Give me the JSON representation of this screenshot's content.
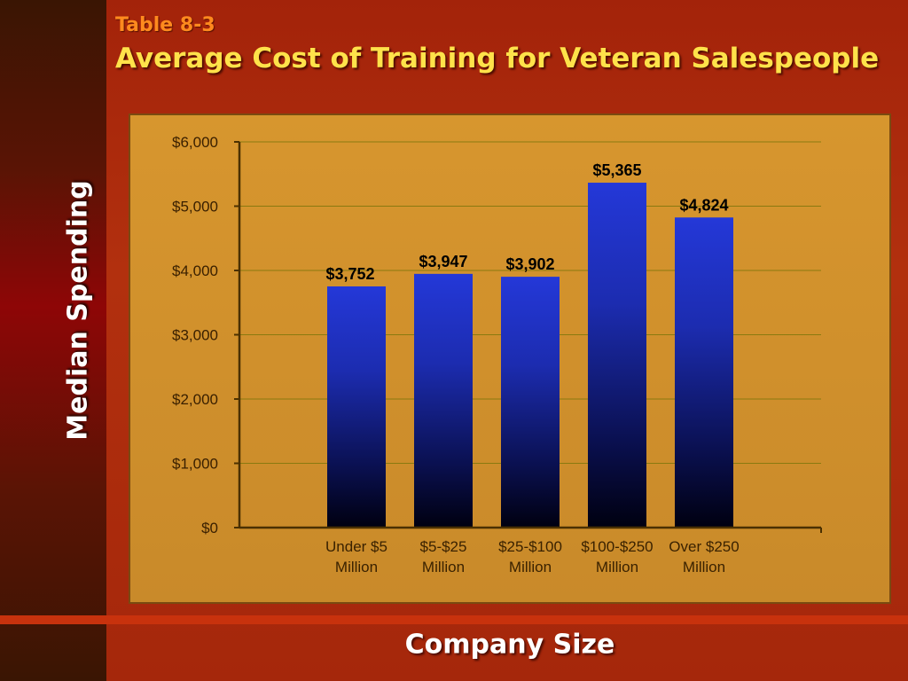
{
  "slide": {
    "subtitle": "Table 8-3",
    "title": "Average Cost of Training for Veteran Salespeople"
  },
  "colors": {
    "background": "#a3230a",
    "left_band": "#5a1405",
    "plot_panel": "#d7962e",
    "bar_top": "#2438d8",
    "bar_bottom": "#000010",
    "title": "#ffe24a",
    "subtitle": "#ff8a1e",
    "gridline": "#8a7a10"
  },
  "chart_data": {
    "type": "bar",
    "title": "Average Cost of Training for Veteran Salespeople",
    "xlabel": "Company Size",
    "ylabel": "Median Spending",
    "categories": [
      [
        "Under $5",
        "Million"
      ],
      [
        "$5-$25",
        "Million"
      ],
      [
        "$25-$100",
        "Million"
      ],
      [
        "$100-$250",
        "Million"
      ],
      [
        "Over $250",
        "Million"
      ]
    ],
    "values": [
      3752,
      3947,
      3902,
      5365,
      4824
    ],
    "data_labels": [
      "$3,752",
      "$3,947",
      "$3,902",
      "$5,365",
      "$4,824"
    ],
    "ylim": [
      0,
      6000
    ],
    "yticks": [
      0,
      1000,
      2000,
      3000,
      4000,
      5000,
      6000
    ],
    "ytick_labels": [
      "$0",
      "$1,000",
      "$2,000",
      "$3,000",
      "$4,000",
      "$5,000",
      "$6,000"
    ],
    "grid": true,
    "legend": "none"
  }
}
